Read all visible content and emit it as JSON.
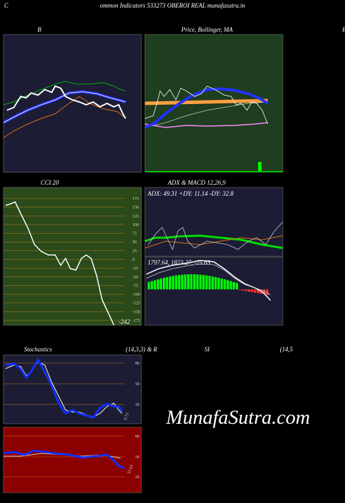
{
  "header": {
    "letter": "C",
    "title": "ommon  Indicators 533273 OBEROI REAL munafasutra.in"
  },
  "panels": {
    "bollinger_b": {
      "label": "B"
    },
    "price": {
      "label": "Price, Bollinger, MA",
      "edge_label": "B"
    },
    "cci": {
      "label": "CCI 20",
      "ticks": [
        "175",
        "150",
        "125",
        "100",
        "75",
        "50",
        "25",
        "0",
        "-25",
        "-50",
        "-75",
        "-100",
        "-125",
        "-150",
        "-175"
      ],
      "current": "-242"
    },
    "adx_macd": {
      "label": "ADX  & MACD 12,26,9",
      "adx_text": "ADX: 49.31  +DY: 11.14  -DY: 32.8",
      "macd_text": "1797.64, 1823.27, -25.63"
    },
    "stochastics": {
      "label": "Stochastics",
      "params": "(14,3,3) & R",
      "ticks": [
        "80",
        "50",
        "20"
      ],
      "current": "9.73"
    },
    "rsi": {
      "label": "SI",
      "params": "(14,5",
      "ticks": [
        "80",
        "50",
        "20"
      ],
      "current": "51.63"
    }
  },
  "watermark": "MunafaSutra.com"
}
